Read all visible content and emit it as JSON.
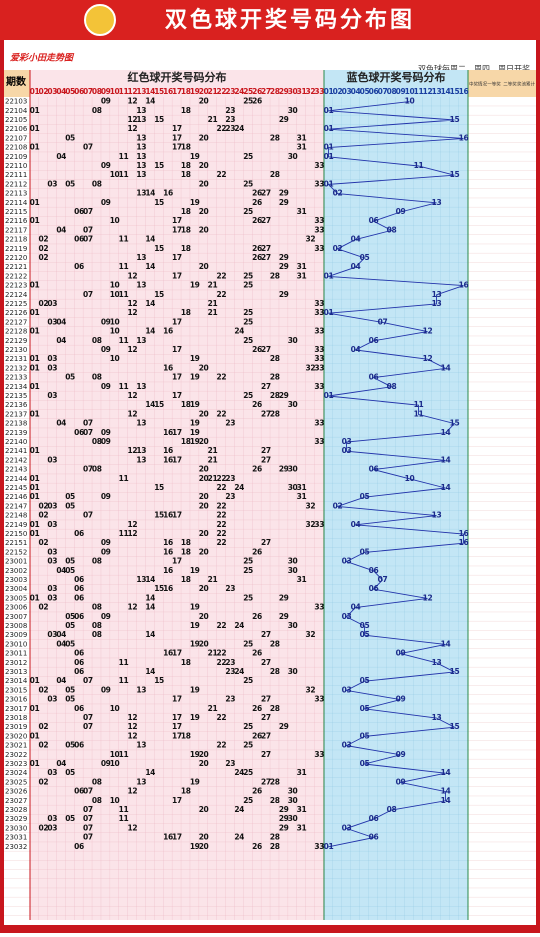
{
  "header": {
    "title": "双色球开奖号码分布图",
    "site": "爱彩小田走势图",
    "schedule": "双色球每周二、周四、周日开奖"
  },
  "table": {
    "period_header": "期数",
    "red_header": "红色球开奖号码分布",
    "blue_header": "蓝色球开奖号码分布",
    "stats_headers": [
      "中奖情况",
      "一等奖",
      "二等奖",
      "奖池累计"
    ],
    "red_columns": [
      "01",
      "02",
      "03",
      "04",
      "05",
      "06",
      "07",
      "08",
      "09",
      "10",
      "11",
      "12",
      "13",
      "14",
      "15",
      "16",
      "17",
      "18",
      "19",
      "20",
      "21",
      "22",
      "23",
      "24",
      "25",
      "26",
      "27",
      "28",
      "29",
      "30",
      "31",
      "32",
      "33"
    ],
    "blue_columns": [
      "01",
      "02",
      "03",
      "04",
      "05",
      "06",
      "07",
      "08",
      "09",
      "10",
      "11",
      "12",
      "13",
      "14",
      "15",
      "16"
    ],
    "rows": [
      {
        "period": "22103",
        "red": [
          "09",
          "12",
          "14",
          "20",
          "25",
          "26"
        ],
        "blue": "10"
      },
      {
        "period": "22104",
        "red": [
          "01",
          "08",
          "13",
          "18",
          "23",
          "30"
        ],
        "blue": "01"
      },
      {
        "period": "22105",
        "red": [
          "12",
          "13",
          "15",
          "21",
          "23",
          "29"
        ],
        "blue": "15"
      },
      {
        "period": "22106",
        "red": [
          "01",
          "12",
          "17",
          "22",
          "23",
          "24"
        ],
        "blue": "01"
      },
      {
        "period": "22107",
        "red": [
          "05",
          "13",
          "17",
          "20",
          "28",
          "31"
        ],
        "blue": "16"
      },
      {
        "period": "22108",
        "red": [
          "01",
          "07",
          "13",
          "17",
          "18",
          "31"
        ],
        "blue": "01"
      },
      {
        "period": "22109",
        "red": [
          "04",
          "11",
          "13",
          "19",
          "25",
          "30"
        ],
        "blue": "01"
      },
      {
        "period": "22110",
        "red": [
          "09",
          "13",
          "15",
          "18",
          "20",
          "33"
        ],
        "blue": "11"
      },
      {
        "period": "22111",
        "red": [
          "10",
          "11",
          "13",
          "18",
          "22",
          "28"
        ],
        "blue": "15"
      },
      {
        "period": "22112",
        "red": [
          "03",
          "05",
          "08",
          "20",
          "25",
          "33"
        ],
        "blue": "01"
      },
      {
        "period": "22113",
        "red": [
          "13",
          "14",
          "16",
          "26",
          "27",
          "29"
        ],
        "blue": "02"
      },
      {
        "period": "22114",
        "red": [
          "01",
          "09",
          "15",
          "19",
          "26",
          "29"
        ],
        "blue": "13"
      },
      {
        "period": "22115",
        "red": [
          "06",
          "07",
          "18",
          "20",
          "25",
          "31"
        ],
        "blue": "09"
      },
      {
        "period": "22116",
        "red": [
          "01",
          "10",
          "17",
          "26",
          "27",
          "33"
        ],
        "blue": "06"
      },
      {
        "period": "22117",
        "red": [
          "04",
          "07",
          "17",
          "18",
          "20",
          "33"
        ],
        "blue": "08"
      },
      {
        "period": "22118",
        "red": [
          "02",
          "06",
          "07",
          "11",
          "14",
          "32"
        ],
        "blue": "04"
      },
      {
        "period": "22119",
        "red": [
          "02",
          "15",
          "18",
          "26",
          "27",
          "33"
        ],
        "blue": "02"
      },
      {
        "period": "22120",
        "red": [
          "02",
          "13",
          "17",
          "26",
          "27",
          "29"
        ],
        "blue": "05"
      },
      {
        "period": "22121",
        "red": [
          "06",
          "11",
          "14",
          "20",
          "29",
          "31"
        ],
        "blue": "04"
      },
      {
        "period": "22122",
        "red": [
          "12",
          "17",
          "22",
          "25",
          "28",
          "31"
        ],
        "blue": "01"
      },
      {
        "period": "22123",
        "red": [
          "01",
          "10",
          "13",
          "19",
          "21",
          "25"
        ],
        "blue": "16"
      },
      {
        "period": "22124",
        "red": [
          "07",
          "10",
          "11",
          "15",
          "22",
          "29"
        ],
        "blue": "13"
      },
      {
        "period": "22125",
        "red": [
          "02",
          "03",
          "12",
          "14",
          "21",
          "33"
        ],
        "blue": "13"
      },
      {
        "period": "22126",
        "red": [
          "01",
          "12",
          "18",
          "21",
          "25",
          "33"
        ],
        "blue": "01"
      },
      {
        "period": "22127",
        "red": [
          "03",
          "04",
          "09",
          "10",
          "17",
          "25"
        ],
        "blue": "07"
      },
      {
        "period": "22128",
        "red": [
          "01",
          "10",
          "14",
          "16",
          "24",
          "33"
        ],
        "blue": "12"
      },
      {
        "period": "22129",
        "red": [
          "04",
          "08",
          "11",
          "13",
          "25",
          "30"
        ],
        "blue": "06"
      },
      {
        "period": "22130",
        "red": [
          "09",
          "12",
          "17",
          "26",
          "27",
          "33"
        ],
        "blue": "04"
      },
      {
        "period": "22131",
        "red": [
          "01",
          "03",
          "10",
          "19",
          "28",
          "33"
        ],
        "blue": "12"
      },
      {
        "period": "22132",
        "red": [
          "01",
          "03",
          "16",
          "20",
          "32",
          "33"
        ],
        "blue": "14"
      },
      {
        "period": "22133",
        "red": [
          "05",
          "08",
          "17",
          "19",
          "22",
          "28"
        ],
        "blue": "06"
      },
      {
        "period": "22134",
        "red": [
          "01",
          "09",
          "11",
          "13",
          "27",
          "33"
        ],
        "blue": "08"
      },
      {
        "period": "22135",
        "red": [
          "03",
          "12",
          "17",
          "25",
          "28",
          "29"
        ],
        "blue": "01"
      },
      {
        "period": "22136",
        "red": [
          "14",
          "15",
          "18",
          "19",
          "26",
          "30"
        ],
        "blue": "11"
      },
      {
        "period": "22137",
        "red": [
          "01",
          "12",
          "20",
          "22",
          "27",
          "28"
        ],
        "blue": "11"
      },
      {
        "period": "22138",
        "red": [
          "04",
          "07",
          "13",
          "19",
          "23",
          "33"
        ],
        "blue": "15"
      },
      {
        "period": "22139",
        "red": [
          "06",
          "07",
          "09",
          "16",
          "17",
          "19"
        ],
        "blue": "14"
      },
      {
        "period": "22140",
        "red": [
          "08",
          "09",
          "18",
          "19",
          "20",
          "33"
        ],
        "blue": "03"
      },
      {
        "period": "22141",
        "red": [
          "01",
          "12",
          "13",
          "16",
          "21",
          "27"
        ],
        "blue": "03"
      },
      {
        "period": "22142",
        "red": [
          "03",
          "13",
          "16",
          "17",
          "21",
          "27"
        ],
        "blue": "14"
      },
      {
        "period": "22143",
        "red": [
          "07",
          "08",
          "20",
          "26",
          "29",
          "30"
        ],
        "blue": "06"
      },
      {
        "period": "22144",
        "red": [
          "01",
          "11",
          "20",
          "21",
          "22",
          "23"
        ],
        "blue": "10"
      },
      {
        "period": "22145",
        "red": [
          "01",
          "15",
          "22",
          "24",
          "30",
          "31"
        ],
        "blue": "14"
      },
      {
        "period": "22146",
        "red": [
          "01",
          "05",
          "09",
          "20",
          "23",
          "31"
        ],
        "blue": "05"
      },
      {
        "period": "22147",
        "red": [
          "02",
          "03",
          "05",
          "20",
          "22",
          "32"
        ],
        "blue": "02"
      },
      {
        "period": "22148",
        "red": [
          "02",
          "07",
          "15",
          "16",
          "17",
          "22"
        ],
        "blue": "13"
      },
      {
        "period": "22149",
        "red": [
          "01",
          "03",
          "12",
          "22",
          "32",
          "33"
        ],
        "blue": "04"
      },
      {
        "period": "22150",
        "red": [
          "01",
          "06",
          "11",
          "12",
          "20",
          "22"
        ],
        "blue": "16"
      },
      {
        "period": "22151",
        "red": [
          "02",
          "09",
          "16",
          "18",
          "22",
          "27"
        ],
        "blue": "16"
      },
      {
        "period": "22152",
        "red": [
          "03",
          "09",
          "16",
          "18",
          "20",
          "26"
        ],
        "blue": "05"
      },
      {
        "period": "23001",
        "red": [
          "03",
          "05",
          "08",
          "17",
          "25",
          "30"
        ],
        "blue": "03"
      },
      {
        "period": "23002",
        "red": [
          "04",
          "05",
          "16",
          "19",
          "25",
          "30"
        ],
        "blue": "06"
      },
      {
        "period": "23003",
        "red": [
          "06",
          "13",
          "14",
          "18",
          "21",
          "31"
        ],
        "blue": "07"
      },
      {
        "period": "23004",
        "red": [
          "03",
          "06",
          "15",
          "16",
          "20",
          "23"
        ],
        "blue": "06"
      },
      {
        "period": "23005",
        "red": [
          "01",
          "03",
          "06",
          "14",
          "25",
          "29"
        ],
        "blue": "12"
      },
      {
        "period": "23006",
        "red": [
          "02",
          "08",
          "12",
          "14",
          "19",
          "33"
        ],
        "blue": "04"
      },
      {
        "period": "23007",
        "red": [
          "05",
          "06",
          "09",
          "20",
          "26",
          "29"
        ],
        "blue": "03"
      },
      {
        "period": "23008",
        "red": [
          "05",
          "08",
          "19",
          "22",
          "24",
          "30"
        ],
        "blue": "05"
      },
      {
        "period": "23009",
        "red": [
          "03",
          "04",
          "08",
          "14",
          "27",
          "32"
        ],
        "blue": "05"
      },
      {
        "period": "23010",
        "red": [
          "04",
          "05",
          "19",
          "20",
          "25",
          "28"
        ],
        "blue": "14"
      },
      {
        "period": "23011",
        "red": [
          "06",
          "16",
          "17",
          "21",
          "22",
          "26"
        ],
        "blue": "09"
      },
      {
        "period": "23012",
        "red": [
          "06",
          "11",
          "18",
          "22",
          "23",
          "27"
        ],
        "blue": "13"
      },
      {
        "period": "23013",
        "red": [
          "06",
          "14",
          "23",
          "24",
          "28",
          "30"
        ],
        "blue": "15"
      },
      {
        "period": "23014",
        "red": [
          "01",
          "04",
          "07",
          "11",
          "15",
          "25"
        ],
        "blue": "05"
      },
      {
        "period": "23015",
        "red": [
          "02",
          "05",
          "09",
          "13",
          "19",
          "32"
        ],
        "blue": "03"
      },
      {
        "period": "23016",
        "red": [
          "03",
          "05",
          "17",
          "23",
          "27",
          "33"
        ],
        "blue": "09"
      },
      {
        "period": "23017",
        "red": [
          "01",
          "06",
          "10",
          "21",
          "26",
          "28"
        ],
        "blue": "05"
      },
      {
        "period": "23018",
        "red": [
          "07",
          "12",
          "17",
          "19",
          "22",
          "27"
        ],
        "blue": "13"
      },
      {
        "period": "23019",
        "red": [
          "02",
          "07",
          "12",
          "17",
          "25",
          "29"
        ],
        "blue": "15"
      },
      {
        "period": "23020",
        "red": [
          "01",
          "12",
          "17",
          "18",
          "26",
          "27"
        ],
        "blue": "05"
      },
      {
        "period": "23021",
        "red": [
          "02",
          "05",
          "06",
          "13",
          "22",
          "25"
        ],
        "blue": "03"
      },
      {
        "period": "23022",
        "red": [
          "10",
          "11",
          "19",
          "20",
          "27",
          "33"
        ],
        "blue": "09"
      },
      {
        "period": "23023",
        "red": [
          "01",
          "04",
          "09",
          "10",
          "20",
          "23"
        ],
        "blue": "05"
      },
      {
        "period": "23024",
        "red": [
          "03",
          "05",
          "14",
          "24",
          "25",
          "31"
        ],
        "blue": "14"
      },
      {
        "period": "23025",
        "red": [
          "02",
          "08",
          "13",
          "19",
          "27",
          "28"
        ],
        "blue": "09"
      },
      {
        "period": "23026",
        "red": [
          "06",
          "07",
          "12",
          "18",
          "26",
          "30"
        ],
        "blue": "14"
      },
      {
        "period": "23027",
        "red": [
          "08",
          "10",
          "17",
          "25",
          "28",
          "30"
        ],
        "blue": "14"
      },
      {
        "period": "23028",
        "red": [
          "07",
          "11",
          "20",
          "24",
          "29",
          "31"
        ],
        "blue": "08"
      },
      {
        "period": "23029",
        "red": [
          "03",
          "05",
          "07",
          "11",
          "29",
          "30"
        ],
        "blue": "06"
      },
      {
        "period": "23030",
        "red": [
          "02",
          "03",
          "07",
          "12",
          "29",
          "31"
        ],
        "blue": "03"
      },
      {
        "period": "23031",
        "red": [
          "07",
          "16",
          "17",
          "20",
          "24",
          "28"
        ],
        "blue": "06"
      },
      {
        "period": "23032",
        "red": [
          "06",
          "19",
          "20",
          "26",
          "28",
          "33"
        ],
        "blue": "01"
      }
    ]
  }
}
